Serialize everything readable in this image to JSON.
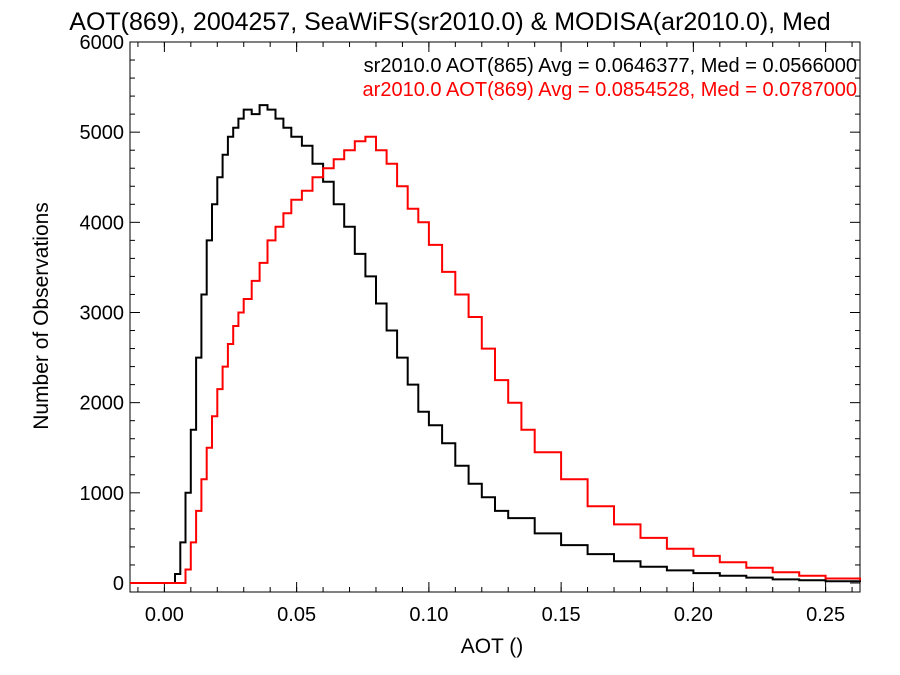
{
  "chart_data": {
    "type": "histogram-step",
    "title": "AOT(869), 2004257, SeaWiFS(sr2010.0) & MODISA(ar2010.0), Med",
    "xlabel": "AOT ()",
    "ylabel": "Number of Observations",
    "xlim": [
      -0.013,
      0.263
    ],
    "ylim": [
      -100,
      6000
    ],
    "x_ticks": [
      0.0,
      0.05,
      0.1,
      0.15,
      0.2,
      0.25
    ],
    "x_tick_labels": [
      "0.00",
      "0.05",
      "0.10",
      "0.15",
      "0.20",
      "0.25"
    ],
    "y_ticks": [
      0,
      1000,
      2000,
      3000,
      4000,
      5000,
      6000
    ],
    "y_tick_labels": [
      "0",
      "1000",
      "2000",
      "3000",
      "4000",
      "5000",
      "6000"
    ],
    "annotations": [
      {
        "text": "sr2010.0 AOT(865) Avg = 0.0646377, Med = 0.0566000",
        "color": "#000000"
      },
      {
        "text": "ar2010.0 AOT(869) Avg = 0.0854528, Med = 0.0787000",
        "color": "#ff0000"
      }
    ],
    "series": [
      {
        "color": "#000000",
        "x": [
          -0.013,
          0.0,
          0.004,
          0.006,
          0.008,
          0.01,
          0.012,
          0.014,
          0.016,
          0.018,
          0.02,
          0.022,
          0.024,
          0.026,
          0.028,
          0.03,
          0.033,
          0.036,
          0.039,
          0.042,
          0.045,
          0.048,
          0.052,
          0.056,
          0.06,
          0.064,
          0.068,
          0.072,
          0.076,
          0.08,
          0.084,
          0.088,
          0.092,
          0.096,
          0.1,
          0.105,
          0.11,
          0.115,
          0.12,
          0.125,
          0.13,
          0.14,
          0.15,
          0.16,
          0.17,
          0.18,
          0.19,
          0.2,
          0.21,
          0.22,
          0.23,
          0.24,
          0.25,
          0.263
        ],
        "values": [
          0,
          0,
          100,
          450,
          1000,
          1700,
          2500,
          3200,
          3800,
          4200,
          4500,
          4750,
          4950,
          5050,
          5150,
          5250,
          5200,
          5300,
          5250,
          5150,
          5050,
          4950,
          4850,
          4650,
          4450,
          4200,
          3950,
          3650,
          3400,
          3100,
          2800,
          2500,
          2200,
          1900,
          1750,
          1550,
          1300,
          1100,
          950,
          800,
          720,
          550,
          420,
          320,
          240,
          180,
          140,
          110,
          80,
          60,
          40,
          30,
          20,
          10
        ]
      },
      {
        "color": "#ff0000",
        "x": [
          -0.013,
          0.0,
          0.005,
          0.008,
          0.01,
          0.012,
          0.014,
          0.016,
          0.018,
          0.02,
          0.022,
          0.024,
          0.026,
          0.028,
          0.03,
          0.033,
          0.036,
          0.039,
          0.042,
          0.045,
          0.048,
          0.052,
          0.056,
          0.06,
          0.064,
          0.068,
          0.072,
          0.076,
          0.08,
          0.084,
          0.088,
          0.092,
          0.096,
          0.1,
          0.105,
          0.11,
          0.115,
          0.12,
          0.125,
          0.13,
          0.135,
          0.14,
          0.15,
          0.16,
          0.17,
          0.18,
          0.19,
          0.2,
          0.21,
          0.22,
          0.23,
          0.24,
          0.25,
          0.263
        ],
        "values": [
          0,
          0,
          0,
          150,
          450,
          800,
          1150,
          1500,
          1850,
          2150,
          2400,
          2650,
          2850,
          3000,
          3150,
          3350,
          3550,
          3800,
          3950,
          4100,
          4250,
          4350,
          4500,
          4600,
          4700,
          4800,
          4900,
          4950,
          4800,
          4650,
          4400,
          4150,
          4000,
          3750,
          3450,
          3200,
          2950,
          2600,
          2250,
          2000,
          1700,
          1450,
          1150,
          850,
          650,
          500,
          380,
          300,
          230,
          170,
          120,
          80,
          50,
          30
        ]
      }
    ]
  }
}
